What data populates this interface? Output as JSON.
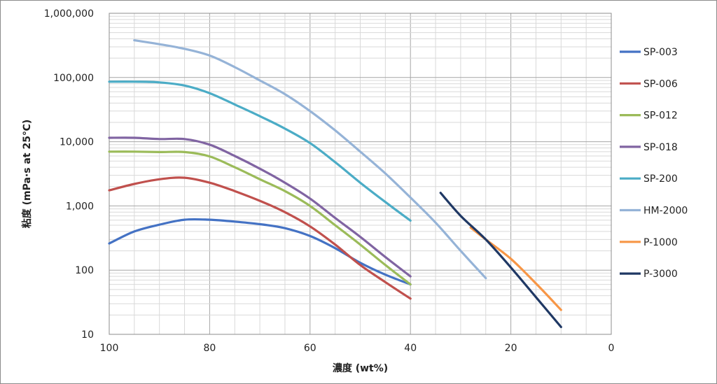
{
  "chart_data": {
    "type": "line",
    "title": "",
    "xlabel": "濃度 (wt%)",
    "ylabel": "粘度 (mPa·s at 25℃)",
    "x_axis": {
      "min": 0,
      "max": 100,
      "reversed": true,
      "major_step": 20,
      "minor_step": 5,
      "tick_labels": [
        "100",
        "80",
        "60",
        "40",
        "20",
        "0"
      ]
    },
    "y_axis": {
      "scale": "log",
      "min": 10,
      "max": 1000000,
      "tick_labels": [
        "10",
        "100",
        "1,000",
        "10,000",
        "100,000",
        "1,000,000"
      ]
    },
    "grid": true,
    "legend_position": "right",
    "series": [
      {
        "name": "SP-003",
        "color": "#4472c4",
        "points": [
          [
            100,
            260
          ],
          [
            95,
            400
          ],
          [
            90,
            510
          ],
          [
            85,
            610
          ],
          [
            80,
            610
          ],
          [
            75,
            570
          ],
          [
            70,
            520
          ],
          [
            65,
            450
          ],
          [
            60,
            340
          ],
          [
            55,
            220
          ],
          [
            50,
            130
          ],
          [
            45,
            85
          ],
          [
            40,
            60
          ]
        ]
      },
      {
        "name": "SP-006",
        "color": "#c0504d",
        "points": [
          [
            100,
            1750
          ],
          [
            95,
            2200
          ],
          [
            90,
            2600
          ],
          [
            85,
            2750
          ],
          [
            80,
            2300
          ],
          [
            75,
            1700
          ],
          [
            70,
            1200
          ],
          [
            65,
            800
          ],
          [
            60,
            480
          ],
          [
            55,
            250
          ],
          [
            50,
            120
          ],
          [
            45,
            65
          ],
          [
            40,
            36
          ]
        ]
      },
      {
        "name": "SP-012",
        "color": "#9bbb59",
        "points": [
          [
            100,
            7000
          ],
          [
            95,
            7000
          ],
          [
            90,
            6900
          ],
          [
            85,
            6900
          ],
          [
            80,
            5900
          ],
          [
            75,
            4000
          ],
          [
            70,
            2600
          ],
          [
            65,
            1700
          ],
          [
            60,
            1000
          ],
          [
            55,
            500
          ],
          [
            50,
            250
          ],
          [
            45,
            120
          ],
          [
            40,
            60
          ]
        ]
      },
      {
        "name": "SP-018",
        "color": "#8064a2",
        "points": [
          [
            100,
            11500
          ],
          [
            95,
            11500
          ],
          [
            90,
            11000
          ],
          [
            85,
            11000
          ],
          [
            80,
            9000
          ],
          [
            75,
            6000
          ],
          [
            70,
            3800
          ],
          [
            65,
            2300
          ],
          [
            60,
            1300
          ],
          [
            55,
            650
          ],
          [
            50,
            330
          ],
          [
            45,
            160
          ],
          [
            40,
            80
          ]
        ]
      },
      {
        "name": "SP-200",
        "color": "#4bacc6",
        "points": [
          [
            100,
            86000
          ],
          [
            95,
            86000
          ],
          [
            90,
            84000
          ],
          [
            85,
            75000
          ],
          [
            80,
            57000
          ],
          [
            75,
            38000
          ],
          [
            70,
            25000
          ],
          [
            65,
            16000
          ],
          [
            60,
            9500
          ],
          [
            55,
            4800
          ],
          [
            50,
            2300
          ],
          [
            45,
            1150
          ],
          [
            40,
            590
          ]
        ]
      },
      {
        "name": "HM-2000",
        "color": "#95b3d7",
        "points": [
          [
            95,
            380000
          ],
          [
            90,
            330000
          ],
          [
            85,
            280000
          ],
          [
            80,
            220000
          ],
          [
            75,
            145000
          ],
          [
            70,
            90000
          ],
          [
            65,
            55000
          ],
          [
            60,
            30000
          ],
          [
            55,
            15000
          ],
          [
            50,
            7000
          ],
          [
            45,
            3200
          ],
          [
            40,
            1350
          ],
          [
            35,
            550
          ],
          [
            30,
            200
          ],
          [
            25,
            75
          ]
        ]
      },
      {
        "name": "P-1000",
        "color": "#f79646",
        "points": [
          [
            28,
            460
          ],
          [
            25,
            300
          ],
          [
            20,
            150
          ],
          [
            15,
            62
          ],
          [
            10,
            24
          ]
        ]
      },
      {
        "name": "P-3000",
        "color": "#1f3864",
        "points": [
          [
            34,
            1600
          ],
          [
            30,
            700
          ],
          [
            25,
            300
          ],
          [
            20,
            110
          ],
          [
            15,
            38
          ],
          [
            10,
            13
          ]
        ]
      }
    ]
  }
}
